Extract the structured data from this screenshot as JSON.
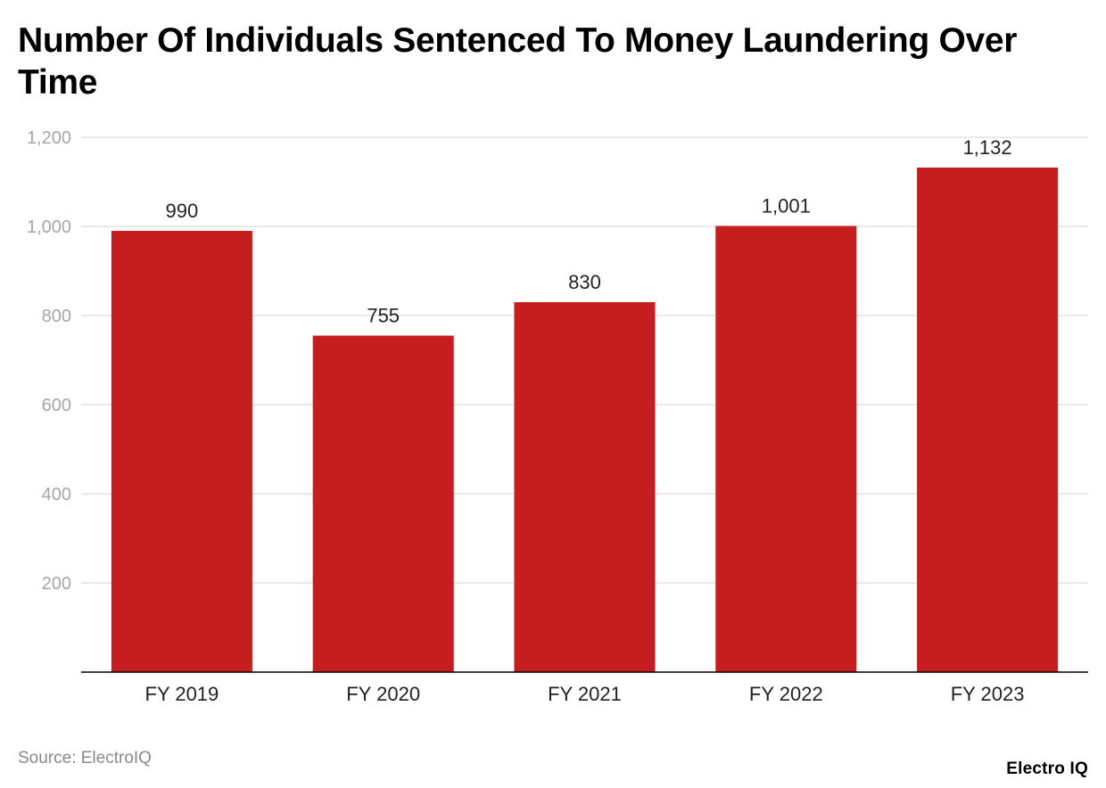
{
  "page": {
    "title": "Number Of Individuals Sentenced To Money Laundering Over Time",
    "source": "Source: ElectroIQ",
    "brand": "Electro IQ"
  },
  "colors": {
    "bar": "#c61e1e",
    "grid": "#e2e2e2",
    "axis": "#000000",
    "tick_label": "#a6a6a6",
    "category_label": "#222222",
    "value_label": "#222222"
  },
  "chart_data": {
    "type": "bar",
    "title": "Number Of Individuals Sentenced To Money Laundering Over Time",
    "categories": [
      "FY 2019",
      "FY 2020",
      "FY 2021",
      "FY 2022",
      "FY 2023"
    ],
    "values": [
      990,
      755,
      830,
      1001,
      1132
    ],
    "value_labels": [
      "990",
      "755",
      "830",
      "1,001",
      "1,132"
    ],
    "xlabel": "",
    "ylabel": "",
    "ylim": [
      0,
      1200
    ],
    "yticks": [
      200,
      400,
      600,
      800,
      1000,
      1200
    ],
    "ytick_labels": [
      "200",
      "400",
      "600",
      "800",
      "1,000",
      "1,200"
    ],
    "grid": true,
    "legend": "none"
  }
}
